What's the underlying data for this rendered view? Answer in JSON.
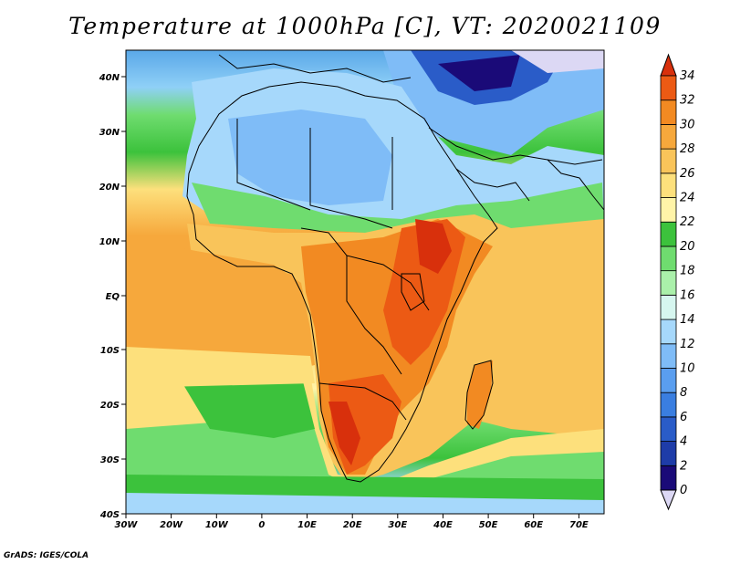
{
  "title": "Temperature at 1000hPa [C], VT: 2020021109",
  "credit": "GrADS: IGES/COLA",
  "map": {
    "lon_ticks": [
      "30W",
      "20W",
      "10W",
      "0",
      "10E",
      "20E",
      "30E",
      "40E",
      "50E",
      "60E",
      "70E"
    ],
    "lat_ticks": [
      "40N",
      "30N",
      "20N",
      "10N",
      "EQ",
      "10S",
      "20S",
      "30S",
      "40S"
    ]
  },
  "colorbar": {
    "levels": [
      "0",
      "2",
      "4",
      "6",
      "8",
      "10",
      "12",
      "14",
      "16",
      "18",
      "20",
      "22",
      "24",
      "26",
      "28",
      "30",
      "32",
      "34"
    ],
    "colors": [
      "#1a0a78",
      "#1e3ca8",
      "#2a5cc8",
      "#3a7ee0",
      "#5a9eef",
      "#7fbcf7",
      "#a6d8fb",
      "#d6f6ef",
      "#aaf0aa",
      "#6fdc6f",
      "#3cc23c",
      "#fff4a8",
      "#fde07c",
      "#f9c45a",
      "#f6a83c",
      "#f28a22",
      "#ec5a14",
      "#d8300c"
    ],
    "under_color": "#dcd8f4",
    "over_color": "#d8300c"
  }
}
